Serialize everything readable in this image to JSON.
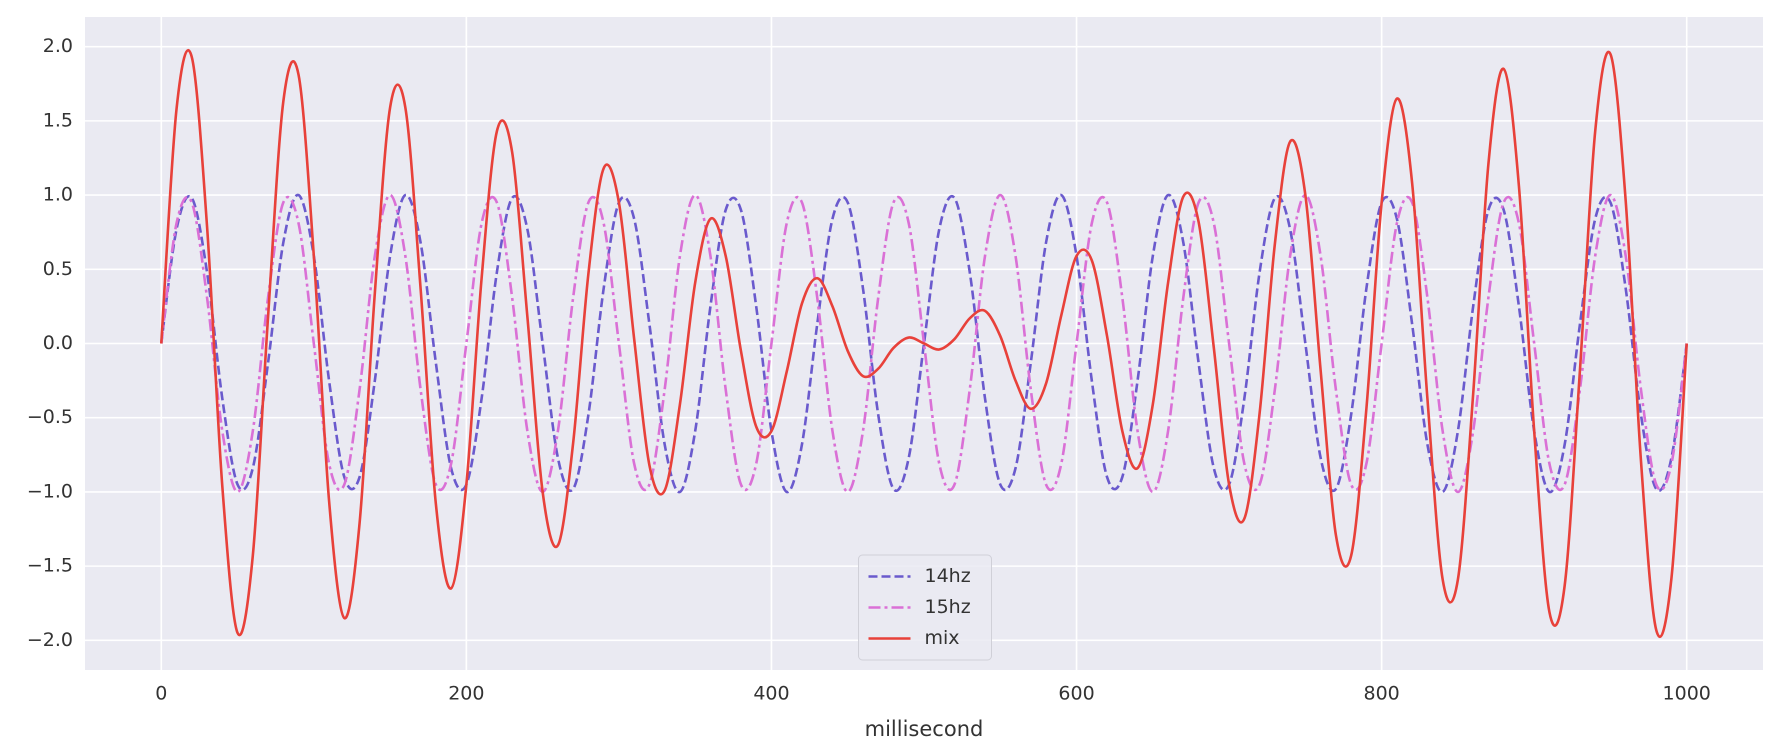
{
  "chart_data": {
    "type": "line",
    "x_label": "millisecond",
    "x": [
      0,
      10,
      20,
      30,
      40,
      50,
      60,
      70,
      80,
      90,
      100,
      110,
      120,
      130,
      140,
      150,
      160,
      170,
      180,
      190,
      200,
      210,
      220,
      230,
      240,
      250,
      260,
      270,
      280,
      290,
      300,
      310,
      320,
      330,
      340,
      350,
      360,
      370,
      380,
      390,
      400,
      410,
      420,
      430,
      440,
      450,
      460,
      470,
      480,
      490,
      500,
      510,
      520,
      530,
      540,
      550,
      560,
      570,
      580,
      590,
      600,
      610,
      620,
      630,
      640,
      650,
      660,
      670,
      680,
      690,
      700,
      710,
      720,
      730,
      740,
      750,
      760,
      770,
      780,
      790,
      800,
      810,
      820,
      830,
      840,
      850,
      860,
      870,
      880,
      890,
      900,
      910,
      920,
      930,
      940,
      950,
      960,
      970,
      980,
      990,
      1000
    ],
    "series": [
      {
        "name": "14hz",
        "color": "#6a5acd",
        "linestyle": "dashed",
        "values": [
          0,
          0.77,
          0.98,
          0.48,
          -0.37,
          -0.95,
          -0.84,
          -0.13,
          0.68,
          1.0,
          0.59,
          -0.25,
          -0.9,
          -0.9,
          -0.25,
          0.59,
          1.0,
          0.68,
          -0.13,
          -0.84,
          -0.95,
          -0.37,
          0.48,
          0.98,
          0.77,
          0,
          -0.77,
          -0.98,
          -0.48,
          0.37,
          0.95,
          0.84,
          0.13,
          -0.68,
          -1.0,
          -0.59,
          0.25,
          0.9,
          0.9,
          0.25,
          -0.59,
          -1.0,
          -0.68,
          0.13,
          0.84,
          0.95,
          0.37,
          -0.48,
          -0.98,
          -0.77,
          0,
          0.77,
          0.98,
          0.48,
          -0.37,
          -0.95,
          -0.84,
          -0.13,
          0.68,
          1.0,
          0.59,
          -0.25,
          -0.9,
          -0.9,
          -0.25,
          0.59,
          1.0,
          0.68,
          -0.13,
          -0.84,
          -0.95,
          -0.37,
          0.48,
          0.98,
          0.77,
          0,
          -0.77,
          -0.98,
          -0.48,
          0.37,
          0.95,
          0.84,
          0.13,
          -0.68,
          -1.0,
          -0.59,
          0.25,
          0.9,
          0.9,
          0.25,
          -0.59,
          -1.0,
          -0.68,
          0.13,
          0.84,
          0.95,
          0.37,
          -0.48,
          -0.98,
          -0.77,
          0
        ]
      },
      {
        "name": "15hz",
        "color": "#da70d6",
        "linestyle": "dashdot",
        "values": [
          0,
          0.81,
          0.95,
          0.31,
          -0.59,
          -1,
          -0.59,
          0.31,
          0.95,
          0.81,
          0,
          -0.81,
          -0.95,
          -0.31,
          0.59,
          1,
          0.59,
          -0.31,
          -0.95,
          -0.81,
          0,
          0.81,
          0.95,
          0.31,
          -0.59,
          -1,
          -0.59,
          0.31,
          0.95,
          0.81,
          0,
          -0.81,
          -0.95,
          -0.31,
          0.59,
          1,
          0.59,
          -0.31,
          -0.95,
          -0.81,
          0,
          0.81,
          0.95,
          0.31,
          -0.59,
          -1,
          -0.59,
          0.31,
          0.95,
          0.81,
          0,
          -0.81,
          -0.95,
          -0.31,
          0.59,
          1,
          0.59,
          -0.31,
          -0.95,
          -0.81,
          0,
          0.81,
          0.95,
          0.31,
          -0.59,
          -1,
          -0.59,
          0.31,
          0.95,
          0.81,
          0,
          -0.81,
          -0.95,
          -0.31,
          0.59,
          1,
          0.59,
          -0.31,
          -0.95,
          -0.81,
          0,
          0.81,
          0.95,
          0.31,
          -0.59,
          -1,
          -0.59,
          0.31,
          0.95,
          0.81,
          0,
          -0.81,
          -0.95,
          -0.31,
          0.59,
          1,
          0.59,
          -0.31,
          -0.95,
          -0.81,
          0
        ]
      },
      {
        "name": "mix",
        "color": "#e8413a",
        "linestyle": "solid",
        "values": [
          0,
          1.58,
          1.93,
          0.79,
          -0.96,
          -1.95,
          -1.43,
          0.18,
          1.63,
          1.81,
          0.59,
          -1.06,
          -1.85,
          -1.21,
          0.34,
          1.59,
          1.59,
          0.37,
          -1.08,
          -1.65,
          -0.95,
          0.44,
          1.43,
          1.29,
          0.18,
          -1,
          -1.36,
          -0.67,
          0.47,
          1.18,
          0.95,
          0.03,
          -0.82,
          -0.99,
          -0.41,
          0.41,
          0.84,
          0.59,
          -0.05,
          -0.56,
          -0.59,
          -0.19,
          0.27,
          0.44,
          0.25,
          -0.05,
          -0.22,
          -0.17,
          -0.03,
          0.04,
          0,
          -0.04,
          0.03,
          0.17,
          0.22,
          0.05,
          -0.25,
          -0.44,
          -0.27,
          0.19,
          0.59,
          0.56,
          0.05,
          -0.59,
          -0.84,
          -0.41,
          0.41,
          0.99,
          0.82,
          -0.03,
          -0.95,
          -1.18,
          -0.47,
          0.67,
          1.36,
          1,
          -0.18,
          -1.29,
          -1.43,
          -0.44,
          0.95,
          1.65,
          1.08,
          -0.37,
          -1.59,
          -1.59,
          -0.34,
          1.21,
          1.85,
          1.06,
          -0.59,
          -1.81,
          -1.63,
          -0.18,
          1.43,
          1.95,
          0.96,
          -0.79,
          -1.93,
          -1.58,
          0
        ]
      }
    ],
    "xlim": [
      -50,
      1050
    ],
    "xticks": [
      0,
      200,
      400,
      600,
      800,
      1000
    ],
    "ylim": [
      -2.2,
      2.2
    ],
    "yticks": [
      {
        "value": -2.0,
        "label": "−2.0"
      },
      {
        "value": -1.5,
        "label": "−1.5"
      },
      {
        "value": -1.0,
        "label": "−1.0"
      },
      {
        "value": -0.5,
        "label": "−0.5"
      },
      {
        "value": 0.0,
        "label": "0.0"
      },
      {
        "value": 0.5,
        "label": "0.5"
      },
      {
        "value": 1.0,
        "label": "1.0"
      },
      {
        "value": 1.5,
        "label": "1.5"
      },
      {
        "value": 2.0,
        "label": "2.0"
      }
    ],
    "grid": true,
    "legend": "lower center"
  }
}
